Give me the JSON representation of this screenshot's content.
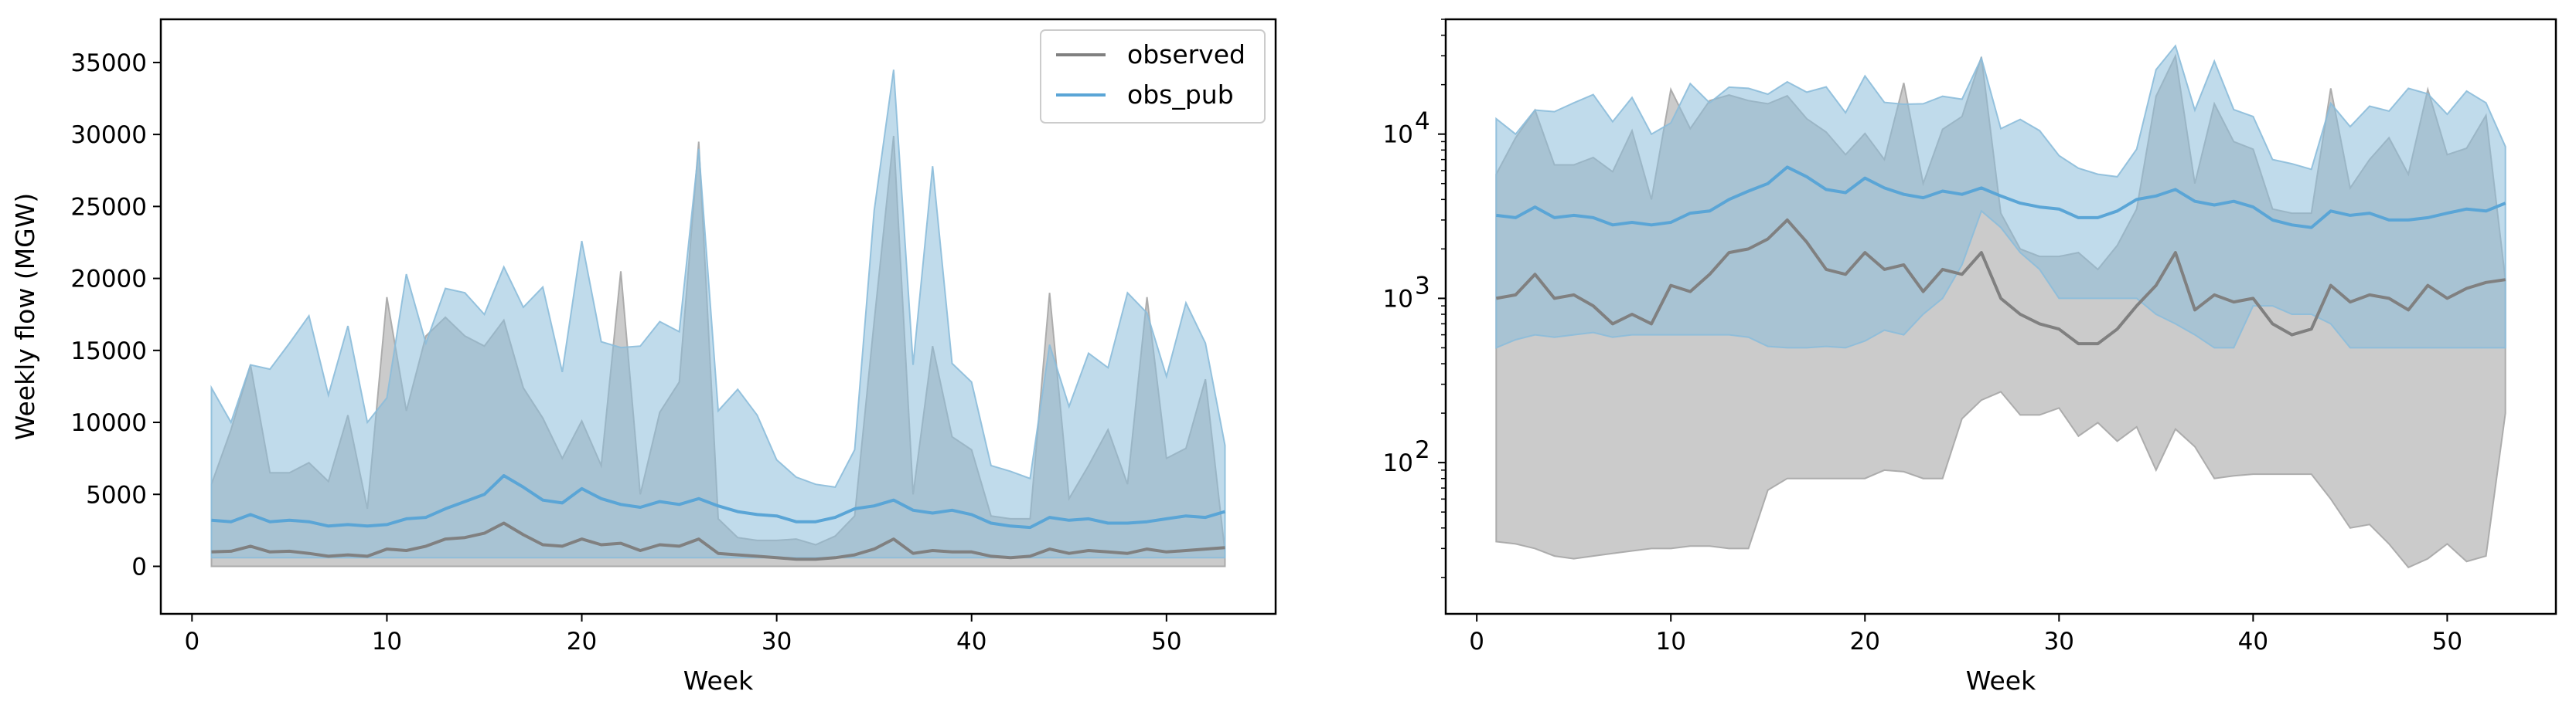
{
  "colors": {
    "observed": "#808080",
    "observed_band": "#a6a6a6",
    "obs_pub": "#5aa5d6",
    "obs_pub_band": "#8cbdda"
  },
  "chart_data": [
    {
      "type": "line",
      "xlabel": "Week",
      "ylabel": "Weekly flow (MGW)",
      "yscale": "linear",
      "xlim": [
        -1.6,
        55.6
      ],
      "ylim": [
        -3300,
        38000
      ],
      "xticks": [
        0,
        10,
        20,
        30,
        40,
        50
      ],
      "yticks": [
        0,
        5000,
        10000,
        15000,
        20000,
        25000,
        30000,
        35000
      ],
      "ytick_labels": [
        "0",
        "5000",
        "10000",
        "15000",
        "20000",
        "25000",
        "30000",
        "35000"
      ],
      "legend": {
        "position": "top-right",
        "entries": [
          "observed",
          "obs_pub"
        ]
      },
      "series": [
        {
          "name": "observed",
          "color": "#808080",
          "values": [
            1000,
            1050,
            1400,
            1000,
            1050,
            900,
            700,
            800,
            700,
            1200,
            1100,
            1400,
            1900,
            2000,
            2300,
            3000,
            2200,
            1500,
            1400,
            1900,
            1500,
            1600,
            1100,
            1500,
            1400,
            1900,
            900,
            800,
            700,
            600,
            500,
            500,
            600,
            800,
            1200,
            1900,
            900,
            1100,
            1000,
            1000,
            700,
            600,
            700,
            1200,
            900,
            1100,
            1000,
            900,
            1200,
            1000,
            1100,
            1200,
            1300
          ],
          "band_upper": [
            5700,
            9500,
            14000,
            6500,
            6500,
            7200,
            5900,
            10500,
            4000,
            18700,
            10800,
            16000,
            17300,
            16000,
            15300,
            17100,
            12400,
            10300,
            7500,
            10100,
            7000,
            20500,
            5000,
            10700,
            12800,
            29500,
            3300,
            2000,
            1800,
            1800,
            1900,
            1500,
            2100,
            3500,
            17000,
            29900,
            5000,
            15300,
            9000,
            8100,
            3500,
            3300,
            3300,
            19000,
            4700,
            7000,
            9500,
            5700,
            18700,
            7500,
            8200,
            13000,
            1000
          ],
          "band_lower": [
            0,
            0,
            0,
            0,
            0,
            0,
            0,
            0,
            0,
            0,
            0,
            0,
            0,
            0,
            0,
            0,
            0,
            0,
            0,
            0,
            0,
            0,
            0,
            0,
            0,
            0,
            0,
            0,
            0,
            0,
            0,
            0,
            0,
            0,
            0,
            0,
            0,
            0,
            0,
            0,
            0,
            0,
            0,
            0,
            0,
            0,
            0,
            0,
            0,
            0,
            0,
            0,
            0
          ]
        },
        {
          "name": "obs_pub",
          "color": "#5aa5d6",
          "values": [
            3200,
            3100,
            3600,
            3100,
            3200,
            3100,
            2800,
            2900,
            2800,
            2900,
            3300,
            3400,
            4000,
            4500,
            5000,
            6300,
            5500,
            4600,
            4400,
            5400,
            4700,
            4300,
            4100,
            4500,
            4300,
            4700,
            4200,
            3800,
            3600,
            3500,
            3100,
            3100,
            3400,
            4000,
            4200,
            4600,
            3900,
            3700,
            3900,
            3600,
            3000,
            2800,
            2700,
            3400,
            3200,
            3300,
            3000,
            3000,
            3100,
            3300,
            3500,
            3400,
            3800
          ],
          "band_upper": [
            12400,
            10000,
            14000,
            13700,
            15500,
            17400,
            11900,
            16700,
            10000,
            11700,
            20300,
            15500,
            19300,
            19000,
            17500,
            20800,
            18000,
            19400,
            13500,
            22600,
            15600,
            15200,
            15300,
            17000,
            16300,
            29000,
            10800,
            12300,
            10500,
            7400,
            6200,
            5700,
            5500,
            8100,
            24700,
            34500,
            14000,
            27800,
            14100,
            12800,
            7000,
            6600,
            6100,
            15400,
            11100,
            14800,
            13800,
            19000,
            17600,
            13200,
            18300,
            15500,
            8400
          ],
          "band_lower": [
            600,
            600,
            600,
            600,
            600,
            600,
            600,
            600,
            600,
            600,
            600,
            600,
            600,
            600,
            600,
            600,
            600,
            600,
            600,
            600,
            600,
            600,
            600,
            600,
            600,
            600,
            600,
            600,
            600,
            600,
            600,
            600,
            600,
            600,
            600,
            600,
            600,
            600,
            600,
            600,
            600,
            600,
            600,
            600,
            600,
            600,
            600,
            600,
            600,
            600,
            600,
            600,
            600
          ]
        }
      ]
    },
    {
      "type": "line",
      "xlabel": "Week",
      "ylabel": "",
      "yscale": "log",
      "xlim": [
        -1.6,
        55.6
      ],
      "ylim": [
        12,
        50000
      ],
      "xticks": [
        0,
        10,
        20,
        30,
        40,
        50
      ],
      "yticks": [
        100,
        1000,
        10000
      ],
      "ytick_labels": [
        "10",
        "10",
        "10"
      ],
      "ytick_exponents": [
        "2",
        "3",
        "4"
      ],
      "series": [
        {
          "name": "observed",
          "color": "#808080",
          "values": [
            1000,
            1050,
            1400,
            1000,
            1050,
            900,
            700,
            800,
            700,
            1200,
            1100,
            1400,
            1900,
            2000,
            2300,
            3000,
            2200,
            1500,
            1400,
            1900,
            1500,
            1600,
            1100,
            1500,
            1400,
            1900,
            1000,
            800,
            700,
            650,
            530,
            530,
            650,
            900,
            1200,
            1900,
            850,
            1050,
            950,
            1000,
            700,
            600,
            650,
            1200,
            950,
            1050,
            1000,
            850,
            1200,
            1000,
            1150,
            1250,
            1300
          ],
          "band_upper": [
            5700,
            9500,
            14000,
            6500,
            6500,
            7200,
            5900,
            10500,
            4000,
            18700,
            10800,
            16000,
            17300,
            16000,
            15300,
            17100,
            12400,
            10300,
            7500,
            10100,
            7000,
            20500,
            5000,
            10700,
            12800,
            29500,
            3300,
            2000,
            1800,
            1800,
            1900,
            1500,
            2100,
            3500,
            17000,
            29900,
            5000,
            15300,
            9000,
            8100,
            3500,
            3300,
            3300,
            19000,
            4700,
            7000,
            9500,
            5700,
            18700,
            7500,
            8200,
            13000,
            1300
          ],
          "band_lower": [
            33,
            32,
            30,
            27,
            26,
            27,
            28,
            29,
            30,
            30,
            31,
            31,
            30,
            30,
            68,
            80,
            80,
            80,
            80,
            80,
            90,
            88,
            80,
            80,
            185,
            240,
            270,
            195,
            195,
            215,
            145,
            175,
            135,
            165,
            90,
            160,
            125,
            80,
            83,
            85,
            85,
            85,
            85,
            60,
            40,
            42,
            32,
            23,
            26,
            32,
            25,
            27,
            200
          ]
        },
        {
          "name": "obs_pub",
          "color": "#5aa5d6",
          "values": [
            3200,
            3100,
            3600,
            3100,
            3200,
            3100,
            2800,
            2900,
            2800,
            2900,
            3300,
            3400,
            4000,
            4500,
            5000,
            6300,
            5500,
            4600,
            4400,
            5400,
            4700,
            4300,
            4100,
            4500,
            4300,
            4700,
            4200,
            3800,
            3600,
            3500,
            3100,
            3100,
            3400,
            4000,
            4200,
            4600,
            3900,
            3700,
            3900,
            3600,
            3000,
            2800,
            2700,
            3400,
            3200,
            3300,
            3000,
            3000,
            3100,
            3300,
            3500,
            3400,
            3800
          ],
          "band_upper": [
            12400,
            10000,
            14000,
            13700,
            15500,
            17400,
            11900,
            16700,
            10000,
            11700,
            20300,
            15500,
            19300,
            19000,
            17500,
            20800,
            18000,
            19400,
            13500,
            22600,
            15600,
            15200,
            15300,
            17000,
            16300,
            29000,
            10800,
            12300,
            10500,
            7400,
            6200,
            5700,
            5500,
            8100,
            24700,
            34500,
            14000,
            27800,
            14100,
            12800,
            7000,
            6600,
            6100,
            15400,
            11100,
            14800,
            13800,
            19000,
            17600,
            13200,
            18300,
            15500,
            8400
          ],
          "band_lower": [
            500,
            560,
            600,
            580,
            600,
            620,
            580,
            600,
            600,
            600,
            600,
            600,
            600,
            580,
            510,
            500,
            500,
            510,
            500,
            550,
            640,
            600,
            800,
            1000,
            1600,
            3400,
            2700,
            1900,
            1500,
            1000,
            1000,
            1000,
            1000,
            1000,
            800,
            700,
            600,
            500,
            500,
            900,
            900,
            800,
            800,
            700,
            500,
            500,
            500,
            500,
            500,
            500,
            500,
            500,
            500
          ]
        }
      ]
    }
  ]
}
